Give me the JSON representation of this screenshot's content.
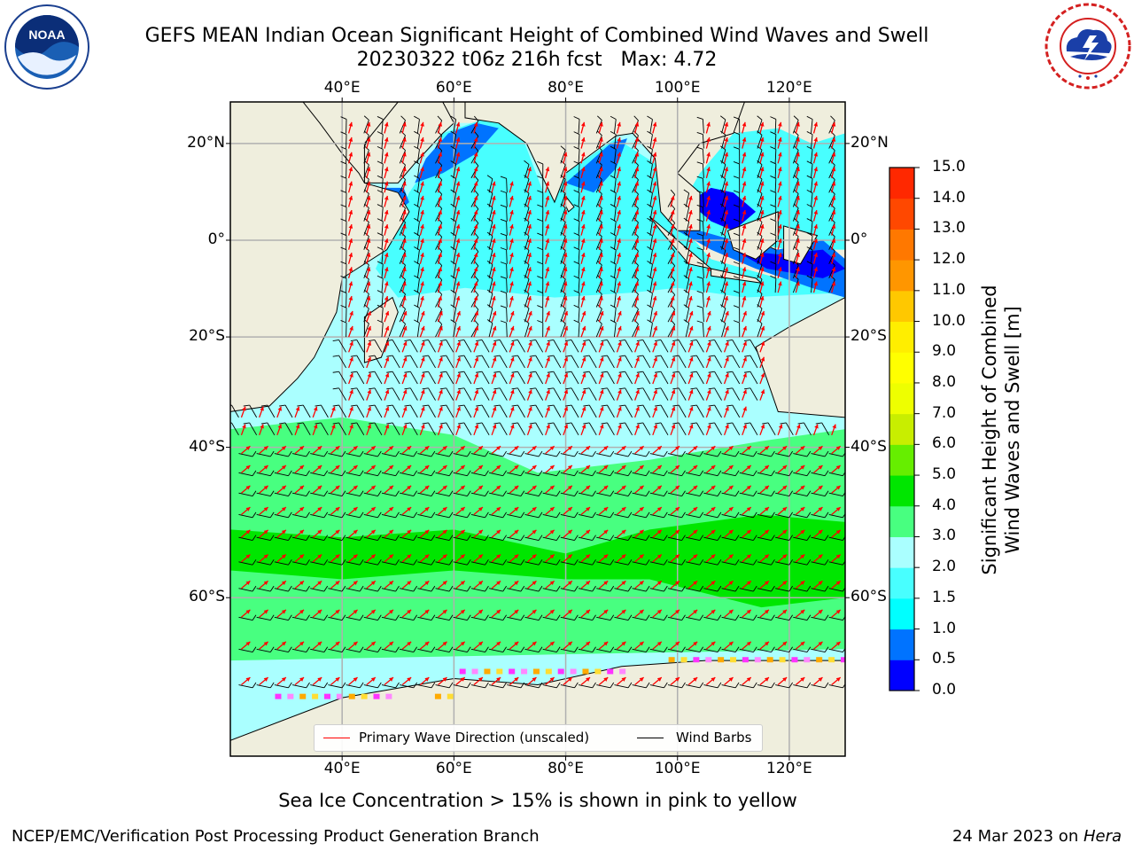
{
  "title": {
    "line1": "GEFS MEAN Indian Ocean Significant Height of Combined Wind Waves and Swell",
    "line2": "20230322 t06z 216h fcst   Max: 4.72"
  },
  "logos": {
    "noaa": "NOAA",
    "noaa_ring": "NATIONAL OCEANIC AND ATMOSPHERIC ADMINISTRATION · U.S. DEPARTMENT OF COMMERCE",
    "nws_ring": "NATIONAL WEATHER SERVICE"
  },
  "map": {
    "lon_ticks": [
      "40°E",
      "60°E",
      "80°E",
      "100°E",
      "120°E"
    ],
    "lat_ticks": [
      "20°N",
      "0°",
      "20°S",
      "40°S",
      "60°S"
    ],
    "extent": {
      "lon": [
        20,
        130
      ],
      "lat": [
        -73,
        28
      ]
    },
    "gridlines": true
  },
  "colorbar": {
    "label_line1": "Significant Height of Combined",
    "label_line2": "Wind Waves and Swell [m]",
    "ticks": [
      "0.0",
      "0.5",
      "1.0",
      "1.5",
      "2.0",
      "3.0",
      "4.0",
      "5.0",
      "6.0",
      "7.0",
      "8.0",
      "9.0",
      "10.0",
      "11.0",
      "12.0",
      "13.0",
      "14.0",
      "15.0"
    ],
    "colors": [
      "#0000ff",
      "#0073ff",
      "#00ffff",
      "#48ffff",
      "#aaffff",
      "#48ff80",
      "#00e600",
      "#66ee00",
      "#c8ee00",
      "#eeff00",
      "#ffff00",
      "#ffee00",
      "#ffc800",
      "#ff9600",
      "#ff7800",
      "#ff4800",
      "#ff2800"
    ]
  },
  "legend": {
    "wave_label": "Primary Wave Direction (unscaled)",
    "wave_color": "#ff0000",
    "barb_label": "Wind Barbs",
    "barb_color": "#000000"
  },
  "footer": {
    "note": "Sea Ice Concentration > 15% is shown in pink to yellow",
    "credit": "NCEP/EMC/Verification Post Processing Product Generation Branch",
    "date": "24 Mar 2023 on ",
    "host": "Hera"
  }
}
